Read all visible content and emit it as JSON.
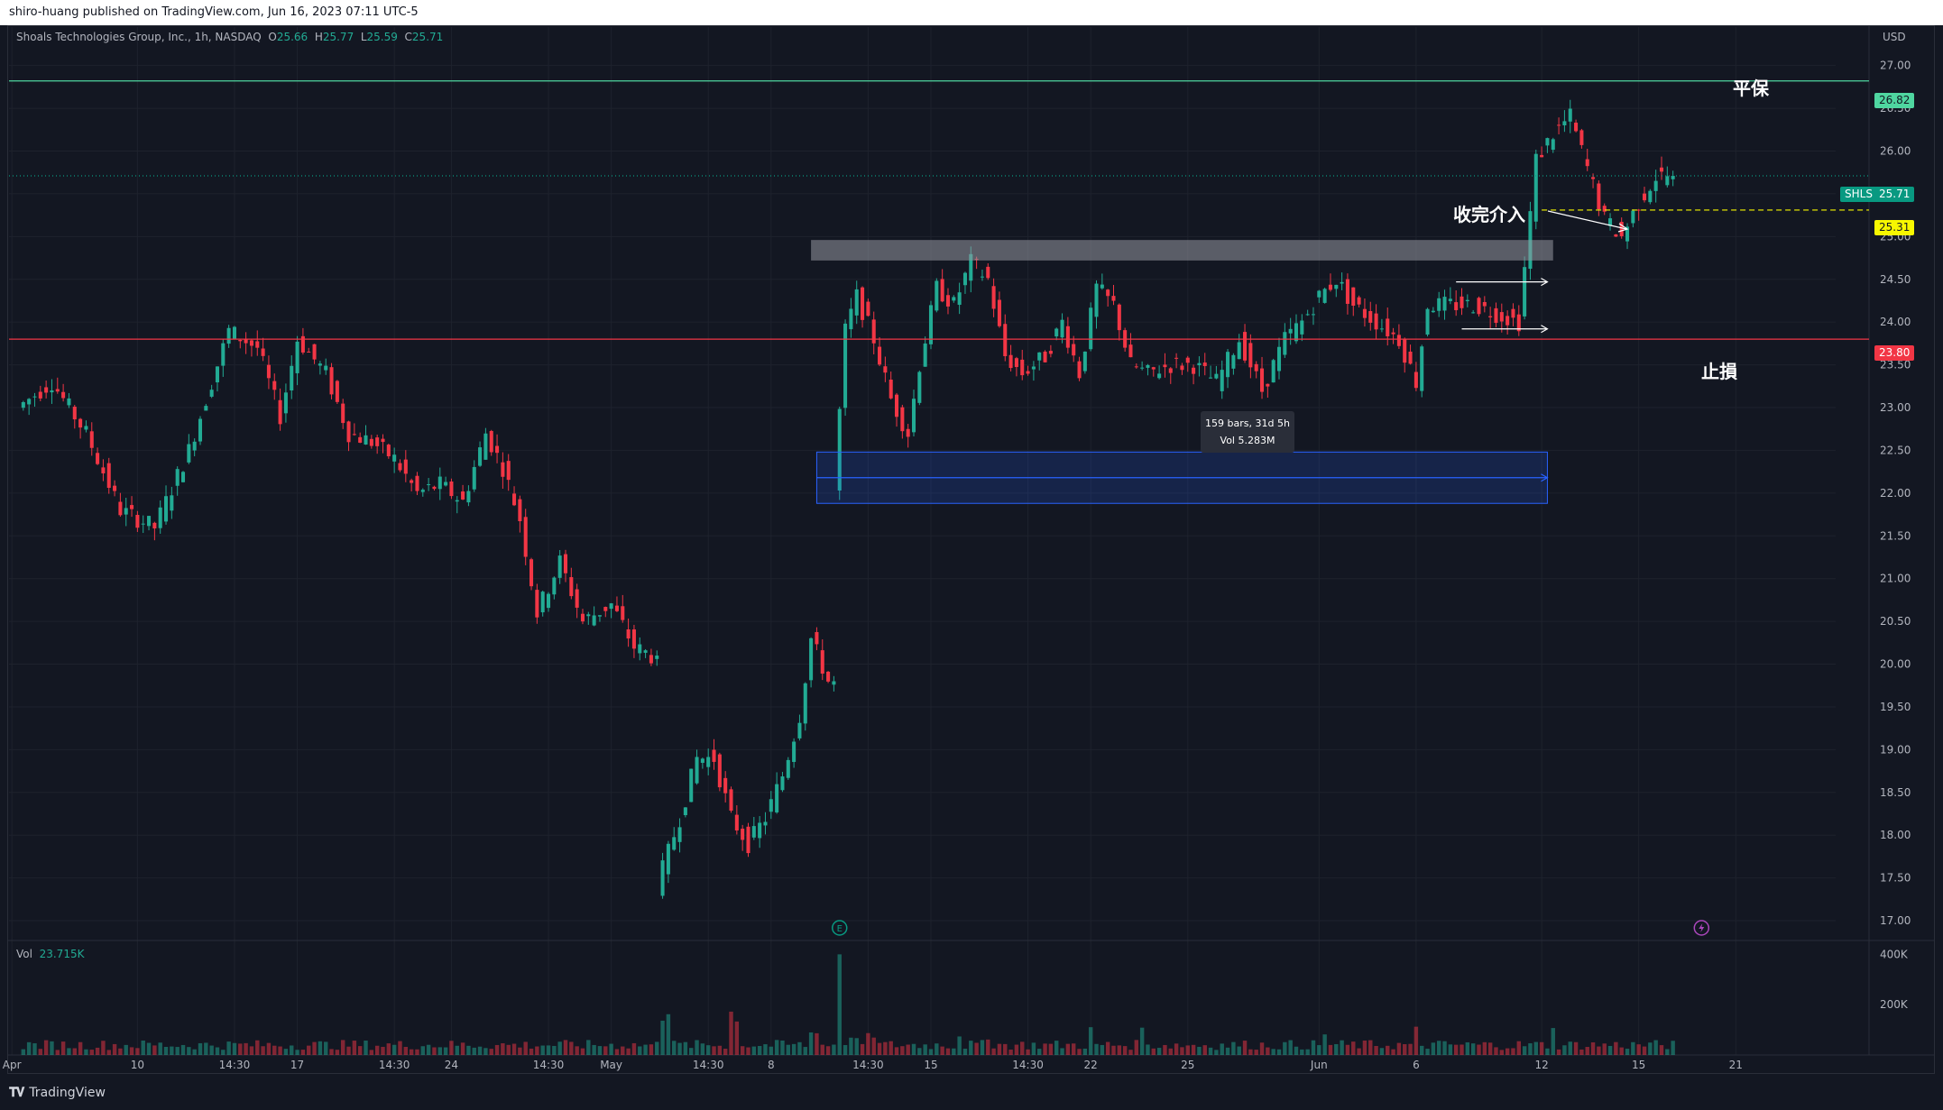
{
  "header": {
    "text": "shiro-huang published on TradingView.com, Jun 16, 2023 07:11 UTC-5"
  },
  "legend": {
    "symbol": "Shoals Technologies Group, Inc., 1h, NASDAQ",
    "o_label": "O",
    "o": "25.66",
    "h_label": "H",
    "h": "25.77",
    "l_label": "L",
    "l": "25.59",
    "c_label": "C",
    "c": "25.71"
  },
  "volume_legend": {
    "label": "Vol",
    "value": "23.715K"
  },
  "currency": "USD",
  "annotations": {
    "breakeven": "平保",
    "entry": "收完介入",
    "stop": "止損"
  },
  "range_tooltip": {
    "bars": "159 bars, 31d 5h",
    "vol": "Vol 5.283M"
  },
  "price_badges": {
    "breakeven": {
      "value": "26.82",
      "color": "#4fd6a0"
    },
    "symbol": {
      "ticker": "SHLS",
      "value": "25.71",
      "color": "#089981"
    },
    "entry": {
      "value": "25.31",
      "color": "#f7f700"
    },
    "stop": {
      "value": "23.80",
      "color": "#f23645"
    }
  },
  "footer": {
    "brand": "TradingView"
  },
  "colors": {
    "up": "#22ab94",
    "down": "#f23645",
    "grid": "#1e222d",
    "text": "#b2b5be"
  },
  "chart_data": {
    "type": "candlestick",
    "title": "Shoals Technologies Group, Inc., 1h, NASDAQ",
    "y_axis": {
      "min": 16.8,
      "max": 27.45,
      "ticks": [
        "27.00",
        "26.50",
        "26.00",
        "25.50",
        "25.00",
        "24.50",
        "24.00",
        "23.50",
        "23.00",
        "22.50",
        "22.00",
        "21.50",
        "21.00",
        "20.50",
        "20.00",
        "19.50",
        "19.00",
        "18.50",
        "18.00",
        "17.50",
        "17.00"
      ]
    },
    "x_axis": {
      "ticks": [
        {
          "label": "Apr",
          "bar": 0
        },
        {
          "label": "10",
          "bar": 22
        },
        {
          "label": "14:30",
          "bar": 39
        },
        {
          "label": "17",
          "bar": 50
        },
        {
          "label": "14:30",
          "bar": 67
        },
        {
          "label": "24",
          "bar": 77
        },
        {
          "label": "14:30",
          "bar": 94
        },
        {
          "label": "May",
          "bar": 105
        },
        {
          "label": "14:30",
          "bar": 122
        },
        {
          "label": "8",
          "bar": 133
        },
        {
          "label": "14:30",
          "bar": 150
        },
        {
          "label": "15",
          "bar": 161
        },
        {
          "label": "14:30",
          "bar": 178
        },
        {
          "label": "22",
          "bar": 189
        },
        {
          "label": "25",
          "bar": 206
        },
        {
          "label": "Jun",
          "bar": 229
        },
        {
          "label": "6",
          "bar": 246
        },
        {
          "label": "12",
          "bar": 268
        },
        {
          "label": "15",
          "bar": 285
        },
        {
          "label": "21",
          "bar": 302
        }
      ],
      "total_bars": 320
    },
    "volume_axis": {
      "max": 430000,
      "ticks": [
        "400K",
        "200K"
      ]
    },
    "levels": [
      {
        "name": "平保",
        "price": 26.82,
        "style": "solid",
        "color": "#4fd6a0"
      },
      {
        "name": "止損",
        "price": 23.8,
        "style": "solid",
        "color": "#f23645"
      },
      {
        "name": "收完介入",
        "price": 25.31,
        "style": "dashed",
        "color": "#f7f700"
      },
      {
        "name": "last",
        "price": 25.71,
        "style": "dotted",
        "color": "#089981"
      }
    ],
    "zones": [
      {
        "kind": "resistance",
        "from_bar": 140,
        "to_bar": 270,
        "price_low": 24.72,
        "price_high": 24.96,
        "color": "#9598a1"
      },
      {
        "kind": "date_range",
        "from_bar": 141,
        "to_bar": 269,
        "price_low": 21.88,
        "price_high": 22.48,
        "color": "#2962ff",
        "label": "159 bars, 31d 5h / Vol 5.283M"
      }
    ],
    "segments": [
      {
        "p": [
          2,
          23.0,
          8,
          23.3,
          14,
          22.7,
          20,
          21.8,
          26,
          21.6,
          32,
          22.5,
          36,
          23.3,
          39,
          23.9,
          44,
          23.7,
          48,
          22.9,
          51,
          23.8,
          56,
          23.4,
          60,
          22.7,
          64,
          22.6,
          68,
          22.4,
          72,
          22.0,
          76,
          22.1,
          80,
          21.9,
          84,
          22.7,
          87,
          22.3,
          90,
          21.7,
          93,
          20.6,
          97,
          21.2,
          101,
          20.5,
          106,
          20.7,
          110,
          20.2,
          113,
          20.1
        ]
      },
      {
        "p": [
          114,
          17.4,
          118,
          18.2,
          121,
          18.9,
          124,
          18.9,
          127,
          18.2,
          130,
          17.9,
          133,
          18.2,
          136,
          18.7,
          139,
          19.4,
          141,
          20.3,
          144,
          19.8
        ]
      },
      {
        "p": [
          145,
          22.0,
          147,
          23.9,
          149,
          24.3,
          152,
          23.8,
          155,
          23.1,
          158,
          22.7,
          160,
          23.5,
          163,
          24.4,
          166,
          24.2,
          169,
          24.7,
          172,
          24.5,
          175,
          23.6,
          178,
          23.4,
          182,
          23.6,
          185,
          24.0,
          188,
          23.4,
          191,
          24.4,
          194,
          24.2,
          197,
          23.5,
          200,
          23.4,
          204,
          23.5,
          208,
          23.5,
          212,
          23.3,
          216,
          23.8,
          220,
          23.2,
          224,
          23.8,
          227,
          24.0,
          230,
          24.3,
          233,
          24.5,
          236,
          24.2,
          240,
          24.0,
          244,
          23.8,
          247,
          23.3,
          249,
          24.2,
          253,
          24.2,
          257,
          24.2,
          261,
          24.1,
          265,
          24.0,
          268,
          25.9,
          271,
          26.2,
          274,
          26.4,
          277,
          25.8,
          280,
          25.2,
          283,
          25.0,
          286,
          25.4,
          289,
          25.7,
          291,
          25.71
        ]
      }
    ],
    "tool_arrows": [
      {
        "from_bar": 253,
        "to_bar": 269,
        "price": 24.47
      },
      {
        "from_bar": 254,
        "to_bar": 269,
        "price": 23.92
      }
    ],
    "annotations": [
      {
        "text": "平保",
        "price": 26.82
      },
      {
        "text": "收完介入",
        "price": 25.31
      },
      {
        "text": "止損",
        "price": 23.8
      }
    ]
  }
}
